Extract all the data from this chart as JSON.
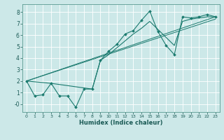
{
  "xlabel": "Humidex (Indice chaleur)",
  "bg_color": "#cce8e8",
  "grid_color": "#ffffff",
  "line_color": "#1a7a6e",
  "xlim": [
    -0.5,
    23.5
  ],
  "ylim": [
    -0.7,
    8.7
  ],
  "xticks": [
    0,
    1,
    2,
    3,
    4,
    5,
    6,
    7,
    8,
    9,
    10,
    11,
    12,
    13,
    14,
    15,
    16,
    17,
    18,
    19,
    20,
    21,
    22,
    23
  ],
  "yticks": [
    0,
    1,
    2,
    3,
    4,
    5,
    6,
    7,
    8
  ],
  "ytick_labels": [
    "-0",
    "1",
    "2",
    "3",
    "4",
    "5",
    "6",
    "7",
    "8"
  ],
  "line1_x": [
    0,
    1,
    2,
    3,
    4,
    5,
    6,
    7,
    8,
    9,
    10,
    11,
    12,
    13,
    14,
    15,
    16,
    17,
    18,
    19,
    20,
    21,
    22,
    23
  ],
  "line1_y": [
    2.0,
    0.7,
    0.8,
    1.8,
    0.7,
    0.7,
    -0.3,
    1.3,
    1.3,
    3.8,
    4.6,
    5.2,
    6.1,
    6.4,
    7.3,
    8.1,
    6.3,
    5.1,
    4.3,
    7.6,
    7.5,
    7.6,
    7.8,
    7.6
  ],
  "line2_x": [
    0,
    3,
    8,
    9,
    10,
    11,
    12,
    13,
    14,
    15,
    16,
    17,
    18,
    19,
    20,
    21,
    22,
    23
  ],
  "line2_y": [
    2.0,
    1.8,
    1.3,
    3.8,
    4.3,
    4.9,
    5.5,
    6.1,
    6.6,
    7.2,
    6.5,
    5.8,
    5.1,
    7.2,
    7.4,
    7.5,
    7.6,
    7.6
  ],
  "line3_x": [
    0,
    23
  ],
  "line3_y": [
    2.0,
    7.6
  ],
  "line4_x": [
    0,
    23
  ],
  "line4_y": [
    2.0,
    7.4
  ]
}
